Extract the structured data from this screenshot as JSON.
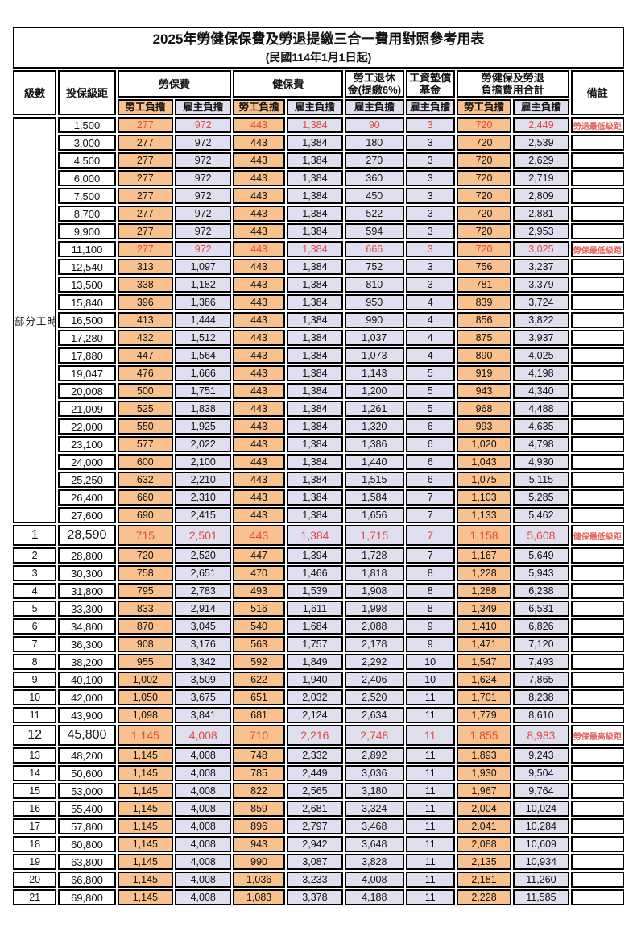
{
  "title": "2025年勞健保保費及勞退提繳三合一費用對照參考用表",
  "subtitle": "(民國114年1月1日起)",
  "colors": {
    "worker_column_bg": "#f9c18d",
    "employer_column_bg": "#dfdff0",
    "highlight_text": "#e6473f",
    "remark_text": "#e8615a",
    "border": "#000000"
  },
  "header": {
    "level": "級數",
    "bracket": "投保級距",
    "labor_insurance": "勞保費",
    "health_insurance": "健保費",
    "pension_line1": "勞工退休",
    "pension_line2": "金(提繳6%)",
    "wage_fund_line1": "工資墊償",
    "wage_fund_line2": "基金",
    "total_line1": "勞健保及勞退",
    "total_line2": "負擔費用合計",
    "worker": "勞工負擔",
    "employer": "雇主負擔",
    "remark": "備註"
  },
  "part_time_label": "部分工時",
  "part_time_rowspan": 23,
  "rows": [
    {
      "level": "",
      "bracket": "1,500",
      "values": [
        "277",
        "972",
        "443",
        "1,384",
        "90",
        "3",
        "720",
        "2,449"
      ],
      "remark": "勞退最低級距",
      "highlight_red": true,
      "emphasis": false
    },
    {
      "level": "",
      "bracket": "3,000",
      "values": [
        "277",
        "972",
        "443",
        "1,384",
        "180",
        "3",
        "720",
        "2,539"
      ],
      "remark": "",
      "highlight_red": false,
      "emphasis": false
    },
    {
      "level": "",
      "bracket": "4,500",
      "values": [
        "277",
        "972",
        "443",
        "1,384",
        "270",
        "3",
        "720",
        "2,629"
      ],
      "remark": "",
      "highlight_red": false,
      "emphasis": false
    },
    {
      "level": "",
      "bracket": "6,000",
      "values": [
        "277",
        "972",
        "443",
        "1,384",
        "360",
        "3",
        "720",
        "2,719"
      ],
      "remark": "",
      "highlight_red": false,
      "emphasis": false
    },
    {
      "level": "",
      "bracket": "7,500",
      "values": [
        "277",
        "972",
        "443",
        "1,384",
        "450",
        "3",
        "720",
        "2,809"
      ],
      "remark": "",
      "highlight_red": false,
      "emphasis": false
    },
    {
      "level": "",
      "bracket": "8,700",
      "values": [
        "277",
        "972",
        "443",
        "1,384",
        "522",
        "3",
        "720",
        "2,881"
      ],
      "remark": "",
      "highlight_red": false,
      "emphasis": false
    },
    {
      "level": "",
      "bracket": "9,900",
      "values": [
        "277",
        "972",
        "443",
        "1,384",
        "594",
        "3",
        "720",
        "2,953"
      ],
      "remark": "",
      "highlight_red": false,
      "emphasis": false
    },
    {
      "level": "",
      "bracket": "11,100",
      "values": [
        "277",
        "972",
        "443",
        "1,384",
        "666",
        "3",
        "720",
        "3,025"
      ],
      "remark": "勞保最低級距",
      "highlight_red": true,
      "emphasis": false
    },
    {
      "level": "",
      "bracket": "12,540",
      "values": [
        "313",
        "1,097",
        "443",
        "1,384",
        "752",
        "3",
        "756",
        "3,237"
      ],
      "remark": "",
      "highlight_red": false,
      "emphasis": false
    },
    {
      "level": "",
      "bracket": "13,500",
      "values": [
        "338",
        "1,182",
        "443",
        "1,384",
        "810",
        "3",
        "781",
        "3,379"
      ],
      "remark": "",
      "highlight_red": false,
      "emphasis": false
    },
    {
      "level": "",
      "bracket": "15,840",
      "values": [
        "396",
        "1,386",
        "443",
        "1,384",
        "950",
        "4",
        "839",
        "3,724"
      ],
      "remark": "",
      "highlight_red": false,
      "emphasis": false
    },
    {
      "level": "",
      "bracket": "16,500",
      "values": [
        "413",
        "1,444",
        "443",
        "1,384",
        "990",
        "4",
        "856",
        "3,822"
      ],
      "remark": "",
      "highlight_red": false,
      "emphasis": false
    },
    {
      "level": "",
      "bracket": "17,280",
      "values": [
        "432",
        "1,512",
        "443",
        "1,384",
        "1,037",
        "4",
        "875",
        "3,937"
      ],
      "remark": "",
      "highlight_red": false,
      "emphasis": false
    },
    {
      "level": "",
      "bracket": "17,880",
      "values": [
        "447",
        "1,564",
        "443",
        "1,384",
        "1,073",
        "4",
        "890",
        "4,025"
      ],
      "remark": "",
      "highlight_red": false,
      "emphasis": false
    },
    {
      "level": "",
      "bracket": "19,047",
      "values": [
        "476",
        "1,666",
        "443",
        "1,384",
        "1,143",
        "5",
        "919",
        "4,198"
      ],
      "remark": "",
      "highlight_red": false,
      "emphasis": false
    },
    {
      "level": "",
      "bracket": "20,008",
      "values": [
        "500",
        "1,751",
        "443",
        "1,384",
        "1,200",
        "5",
        "943",
        "4,340"
      ],
      "remark": "",
      "highlight_red": false,
      "emphasis": false
    },
    {
      "level": "",
      "bracket": "21,009",
      "values": [
        "525",
        "1,838",
        "443",
        "1,384",
        "1,261",
        "5",
        "968",
        "4,488"
      ],
      "remark": "",
      "highlight_red": false,
      "emphasis": false
    },
    {
      "level": "",
      "bracket": "22,000",
      "values": [
        "550",
        "1,925",
        "443",
        "1,384",
        "1,320",
        "6",
        "993",
        "4,635"
      ],
      "remark": "",
      "highlight_red": false,
      "emphasis": false
    },
    {
      "level": "",
      "bracket": "23,100",
      "values": [
        "577",
        "2,022",
        "443",
        "1,384",
        "1,386",
        "6",
        "1,020",
        "4,798"
      ],
      "remark": "",
      "highlight_red": false,
      "emphasis": false
    },
    {
      "level": "",
      "bracket": "24,000",
      "values": [
        "600",
        "2,100",
        "443",
        "1,384",
        "1,440",
        "6",
        "1,043",
        "4,930"
      ],
      "remark": "",
      "highlight_red": false,
      "emphasis": false
    },
    {
      "level": "",
      "bracket": "25,250",
      "values": [
        "632",
        "2,210",
        "443",
        "1,384",
        "1,515",
        "6",
        "1,075",
        "5,115"
      ],
      "remark": "",
      "highlight_red": false,
      "emphasis": false
    },
    {
      "level": "",
      "bracket": "26,400",
      "values": [
        "660",
        "2,310",
        "443",
        "1,384",
        "1,584",
        "7",
        "1,103",
        "5,285"
      ],
      "remark": "",
      "highlight_red": false,
      "emphasis": false
    },
    {
      "level": "",
      "bracket": "27,600",
      "values": [
        "690",
        "2,415",
        "443",
        "1,384",
        "1,656",
        "7",
        "1,133",
        "5,462"
      ],
      "remark": "",
      "highlight_red": false,
      "emphasis": false
    },
    {
      "level": "1",
      "bracket": "28,590",
      "values": [
        "715",
        "2,501",
        "443",
        "1,384",
        "1,715",
        "7",
        "1,158",
        "5,608"
      ],
      "remark": "健保最低級距",
      "highlight_red": true,
      "emphasis": true
    },
    {
      "level": "2",
      "bracket": "28,800",
      "values": [
        "720",
        "2,520",
        "447",
        "1,394",
        "1,728",
        "7",
        "1,167",
        "5,649"
      ],
      "remark": "",
      "highlight_red": false,
      "emphasis": false
    },
    {
      "level": "3",
      "bracket": "30,300",
      "values": [
        "758",
        "2,651",
        "470",
        "1,466",
        "1,818",
        "8",
        "1,228",
        "5,943"
      ],
      "remark": "",
      "highlight_red": false,
      "emphasis": false
    },
    {
      "level": "4",
      "bracket": "31,800",
      "values": [
        "795",
        "2,783",
        "493",
        "1,539",
        "1,908",
        "8",
        "1,288",
        "6,238"
      ],
      "remark": "",
      "highlight_red": false,
      "emphasis": false
    },
    {
      "level": "5",
      "bracket": "33,300",
      "values": [
        "833",
        "2,914",
        "516",
        "1,611",
        "1,998",
        "8",
        "1,349",
        "6,531"
      ],
      "remark": "",
      "highlight_red": false,
      "emphasis": false
    },
    {
      "level": "6",
      "bracket": "34,800",
      "values": [
        "870",
        "3,045",
        "540",
        "1,684",
        "2,088",
        "9",
        "1,410",
        "6,826"
      ],
      "remark": "",
      "highlight_red": false,
      "emphasis": false
    },
    {
      "level": "7",
      "bracket": "36,300",
      "values": [
        "908",
        "3,176",
        "563",
        "1,757",
        "2,178",
        "9",
        "1,471",
        "7,120"
      ],
      "remark": "",
      "highlight_red": false,
      "emphasis": false
    },
    {
      "level": "8",
      "bracket": "38,200",
      "values": [
        "955",
        "3,342",
        "592",
        "1,849",
        "2,292",
        "10",
        "1,547",
        "7,493"
      ],
      "remark": "",
      "highlight_red": false,
      "emphasis": false
    },
    {
      "level": "9",
      "bracket": "40,100",
      "values": [
        "1,002",
        "3,509",
        "622",
        "1,940",
        "2,406",
        "10",
        "1,624",
        "7,865"
      ],
      "remark": "",
      "highlight_red": false,
      "emphasis": false
    },
    {
      "level": "10",
      "bracket": "42,000",
      "values": [
        "1,050",
        "3,675",
        "651",
        "2,032",
        "2,520",
        "11",
        "1,701",
        "8,238"
      ],
      "remark": "",
      "highlight_red": false,
      "emphasis": false
    },
    {
      "level": "11",
      "bracket": "43,900",
      "values": [
        "1,098",
        "3,841",
        "681",
        "2,124",
        "2,634",
        "11",
        "1,779",
        "8,610"
      ],
      "remark": "",
      "highlight_red": false,
      "emphasis": false
    },
    {
      "level": "12",
      "bracket": "45,800",
      "values": [
        "1,145",
        "4,008",
        "710",
        "2,216",
        "2,748",
        "11",
        "1,855",
        "8,983"
      ],
      "remark": "勞保最高級距",
      "highlight_red": true,
      "emphasis": true
    },
    {
      "level": "13",
      "bracket": "48,200",
      "values": [
        "1,145",
        "4,008",
        "748",
        "2,332",
        "2,892",
        "11",
        "1,893",
        "9,243"
      ],
      "remark": "",
      "highlight_red": false,
      "emphasis": false
    },
    {
      "level": "14",
      "bracket": "50,600",
      "values": [
        "1,145",
        "4,008",
        "785",
        "2,449",
        "3,036",
        "11",
        "1,930",
        "9,504"
      ],
      "remark": "",
      "highlight_red": false,
      "emphasis": false
    },
    {
      "level": "15",
      "bracket": "53,000",
      "values": [
        "1,145",
        "4,008",
        "822",
        "2,565",
        "3,180",
        "11",
        "1,967",
        "9,764"
      ],
      "remark": "",
      "highlight_red": false,
      "emphasis": false
    },
    {
      "level": "16",
      "bracket": "55,400",
      "values": [
        "1,145",
        "4,008",
        "859",
        "2,681",
        "3,324",
        "11",
        "2,004",
        "10,024"
      ],
      "remark": "",
      "highlight_red": false,
      "emphasis": false
    },
    {
      "level": "17",
      "bracket": "57,800",
      "values": [
        "1,145",
        "4,008",
        "896",
        "2,797",
        "3,468",
        "11",
        "2,041",
        "10,284"
      ],
      "remark": "",
      "highlight_red": false,
      "emphasis": false
    },
    {
      "level": "18",
      "bracket": "60,800",
      "values": [
        "1,145",
        "4,008",
        "943",
        "2,942",
        "3,648",
        "11",
        "2,088",
        "10,609"
      ],
      "remark": "",
      "highlight_red": false,
      "emphasis": false
    },
    {
      "level": "19",
      "bracket": "63,800",
      "values": [
        "1,145",
        "4,008",
        "990",
        "3,087",
        "3,828",
        "11",
        "2,135",
        "10,934"
      ],
      "remark": "",
      "highlight_red": false,
      "emphasis": false
    },
    {
      "level": "20",
      "bracket": "66,800",
      "values": [
        "1,145",
        "4,008",
        "1,036",
        "3,233",
        "4,008",
        "11",
        "2,181",
        "11,260"
      ],
      "remark": "",
      "highlight_red": false,
      "emphasis": false
    },
    {
      "level": "21",
      "bracket": "69,800",
      "values": [
        "1,145",
        "4,008",
        "1,083",
        "3,378",
        "4,188",
        "11",
        "2,228",
        "11,585"
      ],
      "remark": "",
      "highlight_red": false,
      "emphasis": false
    }
  ]
}
